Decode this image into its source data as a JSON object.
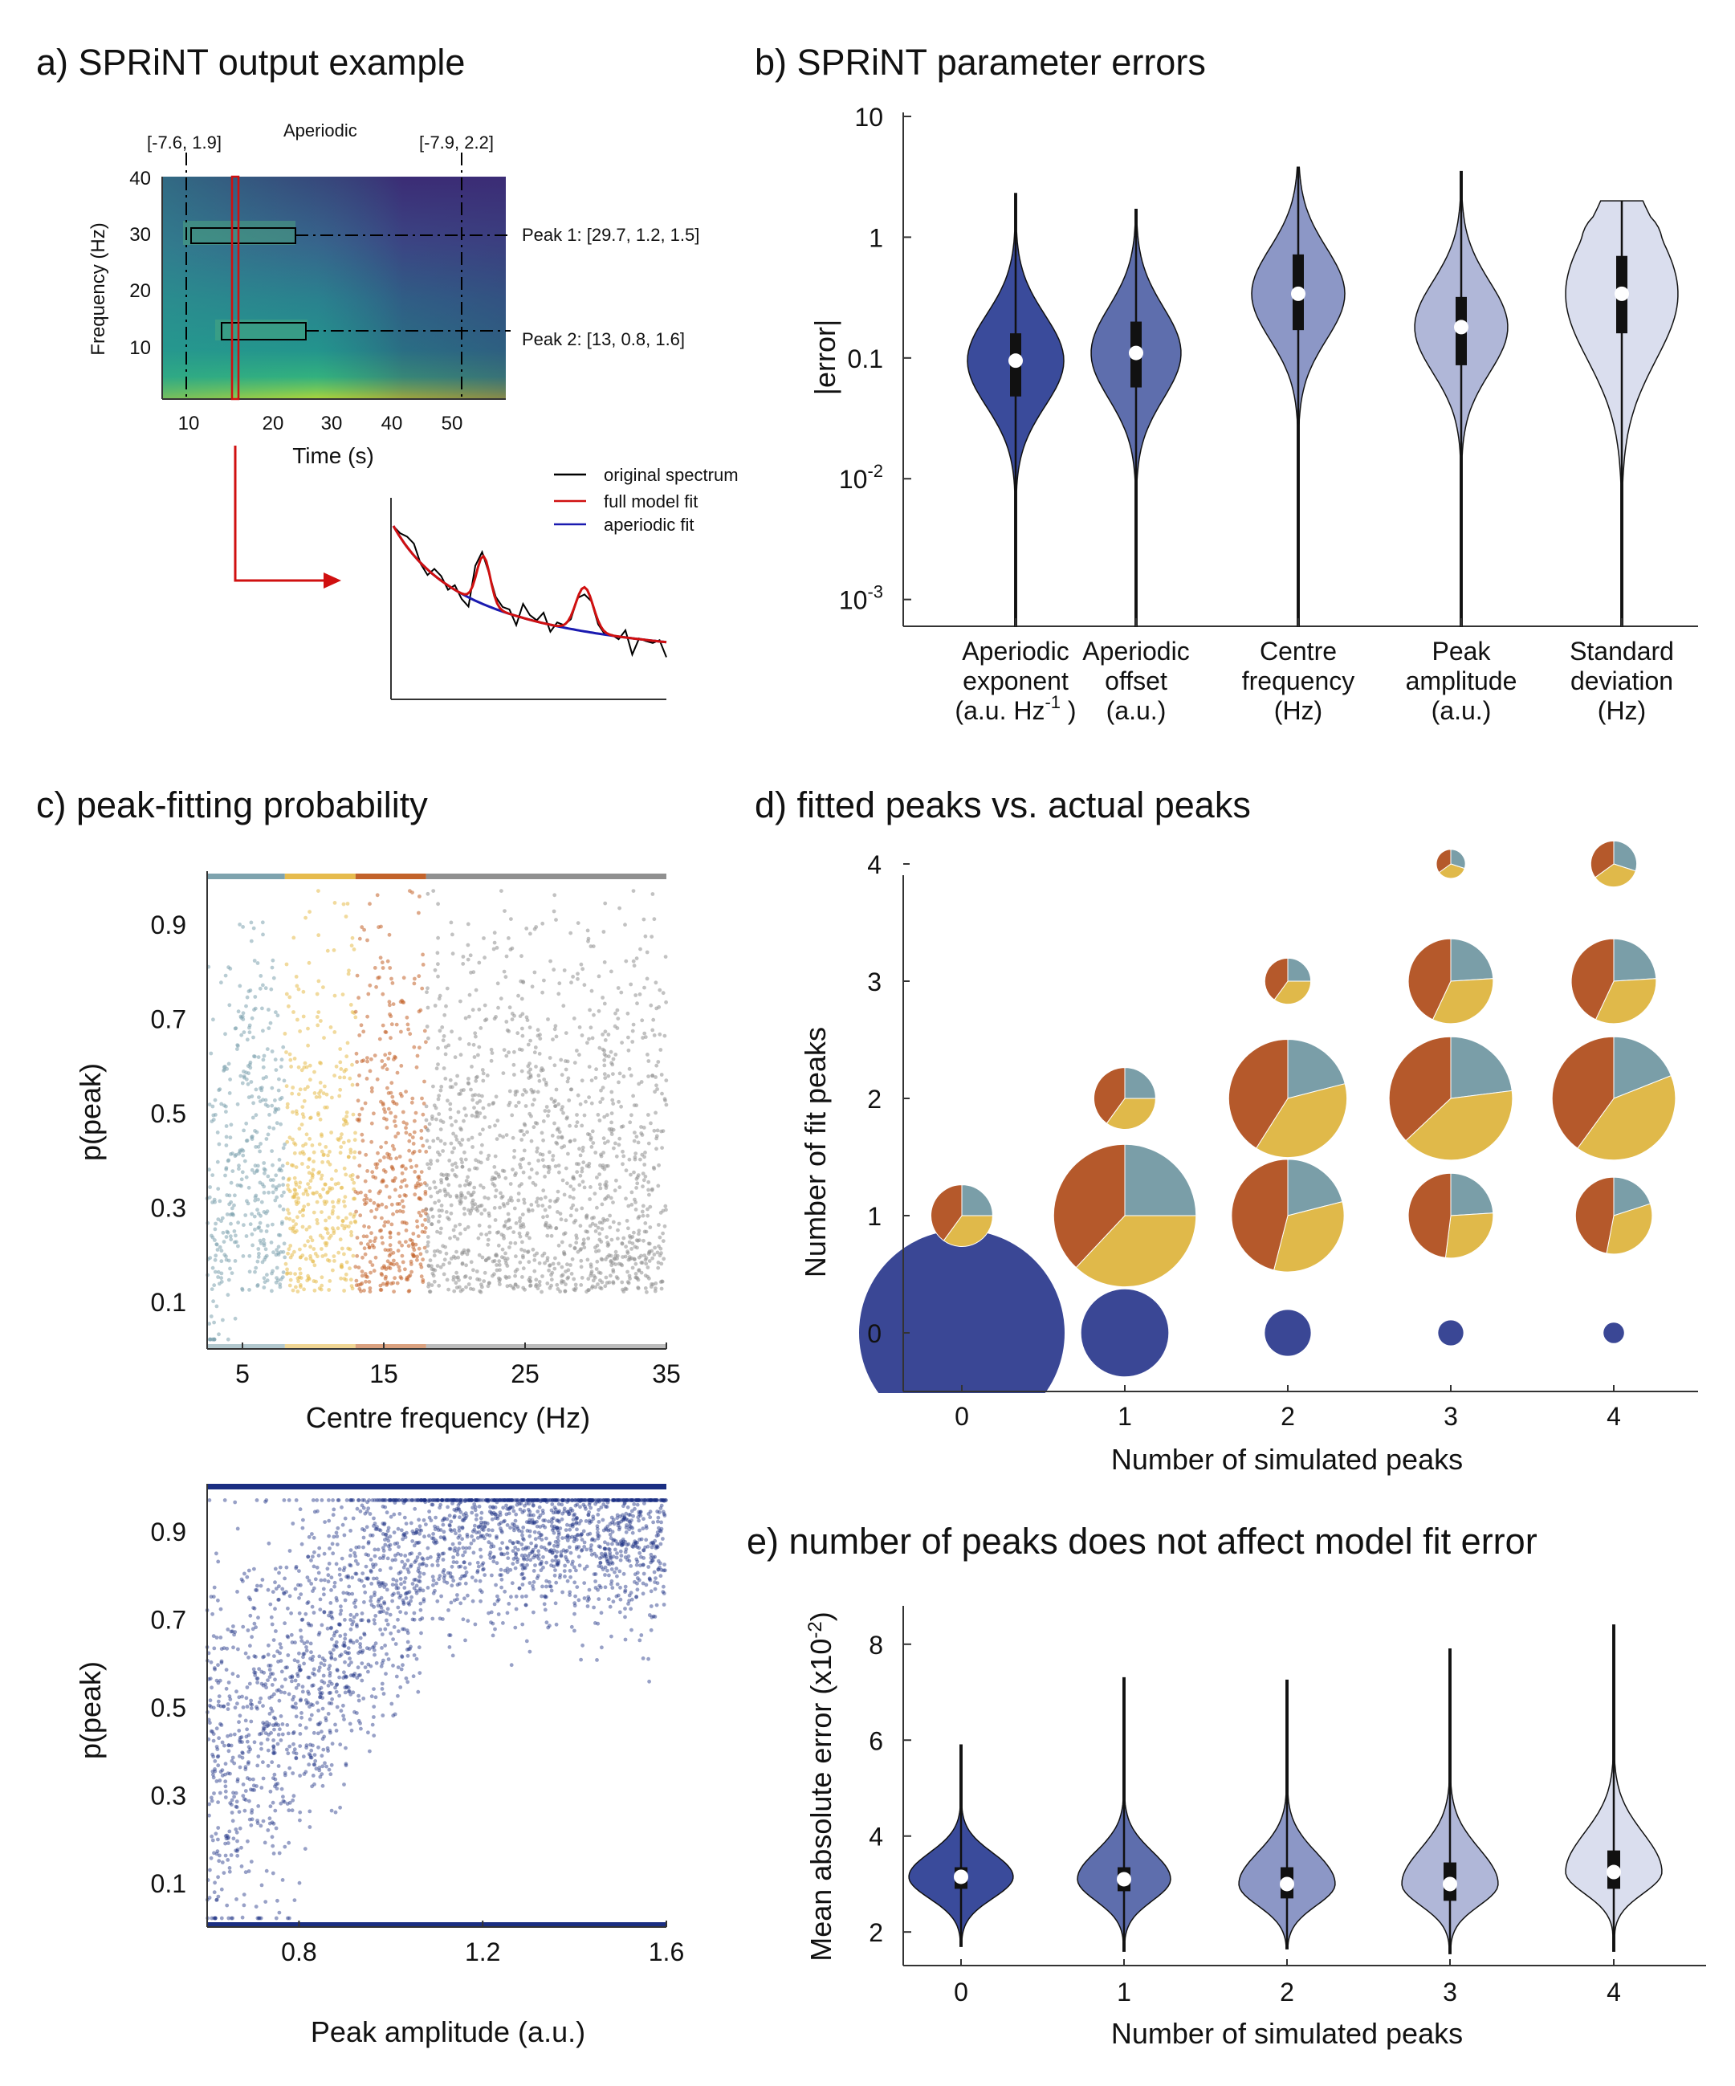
{
  "panels": {
    "a": {
      "title": "a) SPRiNT output example",
      "spectrogram": {
        "aperiodic_label": "Aperiodic",
        "aperiodic_left": "[-7.6, 1.9]",
        "aperiodic_right": "[-7.9, 2.2]",
        "peak1": "Peak 1: [29.7, 1.2, 1.5]",
        "peak2": "Peak 2: [13, 0.8, 1.6]",
        "ylabel": "Frequency (Hz)",
        "xlabel": "Time (s)",
        "yticks": [
          "10",
          "20",
          "30",
          "40"
        ],
        "xticks": [
          "10",
          "20",
          "30",
          "40",
          "50"
        ]
      },
      "spectrum": {
        "legend": [
          "original spectrum",
          "full model fit",
          "aperiodic fit"
        ],
        "colors": [
          "#000000",
          "#d01010",
          "#1a1ab0"
        ]
      }
    },
    "b": {
      "title": "b) SPRiNT parameter errors",
      "ylabel": "|error|",
      "yticks": [
        {
          "base": "10",
          "sup": "-3"
        },
        {
          "base": "10",
          "sup": "-2"
        },
        {
          "base": "0.1",
          "sup": ""
        },
        {
          "base": "1",
          "sup": ""
        },
        {
          "base": "10",
          "sup": ""
        }
      ],
      "categories": [
        [
          "Aperiodic",
          "exponent",
          "(a.u. Hz"
        ],
        [
          "Aperiodic",
          "offset",
          "(a.u.)"
        ],
        [
          "Centre",
          "frequency",
          "(Hz)"
        ],
        [
          "Peak",
          "amplitude",
          "(a.u.)"
        ],
        [
          "Standard",
          "deviation",
          "(Hz)"
        ]
      ],
      "exp_sup": "-1",
      "exp_close": " )"
    },
    "c": {
      "title": "c) peak-fitting probability",
      "top_xlabel": "Centre frequency (Hz)",
      "top_xticks": [
        "5",
        "15",
        "25",
        "35"
      ],
      "ylabel": "p(peak)",
      "yticks": [
        "0.1",
        "0.3",
        "0.5",
        "0.7",
        "0.9"
      ],
      "bottom_xlabel": "Peak amplitude (a.u.)",
      "bottom_xticks": [
        "0.8",
        "1.2",
        "1.6"
      ]
    },
    "d": {
      "title": "d) fitted peaks vs. actual peaks",
      "xlabel": "Number of simulated peaks",
      "ylabel": "Number of fit peaks",
      "xticks": [
        "0",
        "1",
        "2",
        "3",
        "4"
      ],
      "yticks": [
        "0",
        "1",
        "2",
        "3",
        "4"
      ]
    },
    "e": {
      "title": "e) number of peaks does not affect model fit error",
      "xlabel": "Number of simulated peaks",
      "ylabel": "Mean absolute error (x10",
      "ylabel_sup": "-2",
      "ylabel_close": ")",
      "xticks": [
        "0",
        "1",
        "2",
        "3",
        "4"
      ],
      "yticks": [
        "2",
        "4",
        "6",
        "8"
      ]
    }
  },
  "chart_data": [
    {
      "type": "violin",
      "panel": "b",
      "title": "b) SPRiNT parameter errors",
      "ylabel": "|error|",
      "yscale": "log",
      "ylim": [
        0.0006,
        10
      ],
      "categories": [
        "Aperiodic exponent (a.u. Hz-1)",
        "Aperiodic offset (a.u.)",
        "Centre frequency (Hz)",
        "Peak amplitude (a.u.)",
        "Standard deviation (Hz)"
      ],
      "medians": [
        0.095,
        0.11,
        0.34,
        0.18,
        0.34
      ],
      "q1": [
        0.048,
        0.057,
        0.17,
        0.087,
        0.16
      ],
      "q3": [
        0.16,
        0.2,
        0.72,
        0.32,
        0.7
      ],
      "whisker_max": [
        2.3,
        1.7,
        3.8,
        3.5,
        2.0
      ],
      "colors": [
        "#3a4b9b",
        "#5e6ead",
        "#8c97c6",
        "#b0b7d8",
        "#dadeee"
      ]
    },
    {
      "type": "scatter",
      "panel": "c-top",
      "xlabel": "Centre frequency (Hz)",
      "ylabel": "p(peak)",
      "xlim": [
        2.5,
        35
      ],
      "ylim": [
        0,
        1
      ],
      "bands": [
        {
          "from": 2.5,
          "to": 8,
          "color": "#7ea3ae"
        },
        {
          "from": 8,
          "to": 13,
          "color": "#e6bb4d"
        },
        {
          "from": 13,
          "to": 18,
          "color": "#c2622a"
        },
        {
          "from": 18,
          "to": 35,
          "color": "#909090"
        }
      ],
      "points_shown": "dense cloud, most mass between 0.75 and 0.95"
    },
    {
      "type": "scatter",
      "panel": "c-bottom",
      "xlabel": "Peak amplitude (a.u.)",
      "ylabel": "p(peak)",
      "xlim": [
        0.6,
        1.6
      ],
      "ylim": [
        0,
        1
      ],
      "color": "#1a2e82"
    },
    {
      "type": "pie-grid",
      "panel": "d",
      "xlabel": "Number of simulated peaks",
      "ylabel": "Number of fit peaks",
      "slice_colors": [
        "#7a9ea8",
        "#e0b94a",
        "#b5592b"
      ],
      "cells": [
        {
          "x": 0,
          "y": 0,
          "size": 1.0,
          "color": "#3a4795"
        },
        {
          "x": 1,
          "y": 0,
          "size": 0.18,
          "color": "#3a4795"
        },
        {
          "x": 2,
          "y": 0,
          "size": 0.05,
          "color": "#3a4795"
        },
        {
          "x": 3,
          "y": 0,
          "size": 0.015,
          "color": "#3a4795"
        },
        {
          "x": 4,
          "y": 0,
          "size": 0.01,
          "color": "#3a4795"
        },
        {
          "x": 0,
          "y": 1,
          "size": 0.09,
          "slices": [
            0.25,
            0.35,
            0.4
          ]
        },
        {
          "x": 1,
          "y": 1,
          "size": 0.48,
          "slices": [
            0.25,
            0.37,
            0.38
          ]
        },
        {
          "x": 2,
          "y": 1,
          "size": 0.3,
          "slices": [
            0.21,
            0.33,
            0.46
          ]
        },
        {
          "x": 3,
          "y": 1,
          "size": 0.17,
          "slices": [
            0.24,
            0.28,
            0.48
          ]
        },
        {
          "x": 4,
          "y": 1,
          "size": 0.14,
          "slices": [
            0.2,
            0.33,
            0.47
          ]
        },
        {
          "x": 1,
          "y": 2,
          "size": 0.09,
          "slices": [
            0.25,
            0.35,
            0.4
          ]
        },
        {
          "x": 2,
          "y": 2,
          "size": 0.33,
          "slices": [
            0.21,
            0.38,
            0.41
          ]
        },
        {
          "x": 3,
          "y": 2,
          "size": 0.36,
          "slices": [
            0.23,
            0.4,
            0.37
          ]
        },
        {
          "x": 4,
          "y": 2,
          "size": 0.36,
          "slices": [
            0.19,
            0.41,
            0.4
          ]
        },
        {
          "x": 2,
          "y": 3,
          "size": 0.05,
          "slices": [
            0.25,
            0.35,
            0.4
          ]
        },
        {
          "x": 3,
          "y": 3,
          "size": 0.17,
          "slices": [
            0.24,
            0.33,
            0.43
          ]
        },
        {
          "x": 4,
          "y": 3,
          "size": 0.17,
          "slices": [
            0.24,
            0.33,
            0.43
          ]
        },
        {
          "x": 3,
          "y": 4,
          "size": 0.02,
          "slices": [
            0.3,
            0.35,
            0.35
          ]
        },
        {
          "x": 4,
          "y": 4,
          "size": 0.05,
          "slices": [
            0.3,
            0.35,
            0.35
          ]
        }
      ]
    },
    {
      "type": "violin",
      "panel": "e",
      "xlabel": "Number of simulated peaks",
      "ylabel": "Mean absolute error (x10-2)",
      "ylim": [
        1.3,
        8.8
      ],
      "categories": [
        "0",
        "1",
        "2",
        "3",
        "4"
      ],
      "medians": [
        3.15,
        3.1,
        3.0,
        3.0,
        3.25
      ],
      "q1": [
        2.9,
        2.85,
        2.7,
        2.65,
        2.9
      ],
      "q3": [
        3.35,
        3.35,
        3.35,
        3.45,
        3.7
      ],
      "whisker_min": [
        1.7,
        1.6,
        1.65,
        1.55,
        1.6
      ],
      "whisker_max": [
        5.9,
        7.3,
        7.25,
        7.9,
        8.4
      ],
      "colors": [
        "#3a4b9b",
        "#5e6ead",
        "#8c97c6",
        "#b0b7d8",
        "#dadeee"
      ]
    }
  ]
}
